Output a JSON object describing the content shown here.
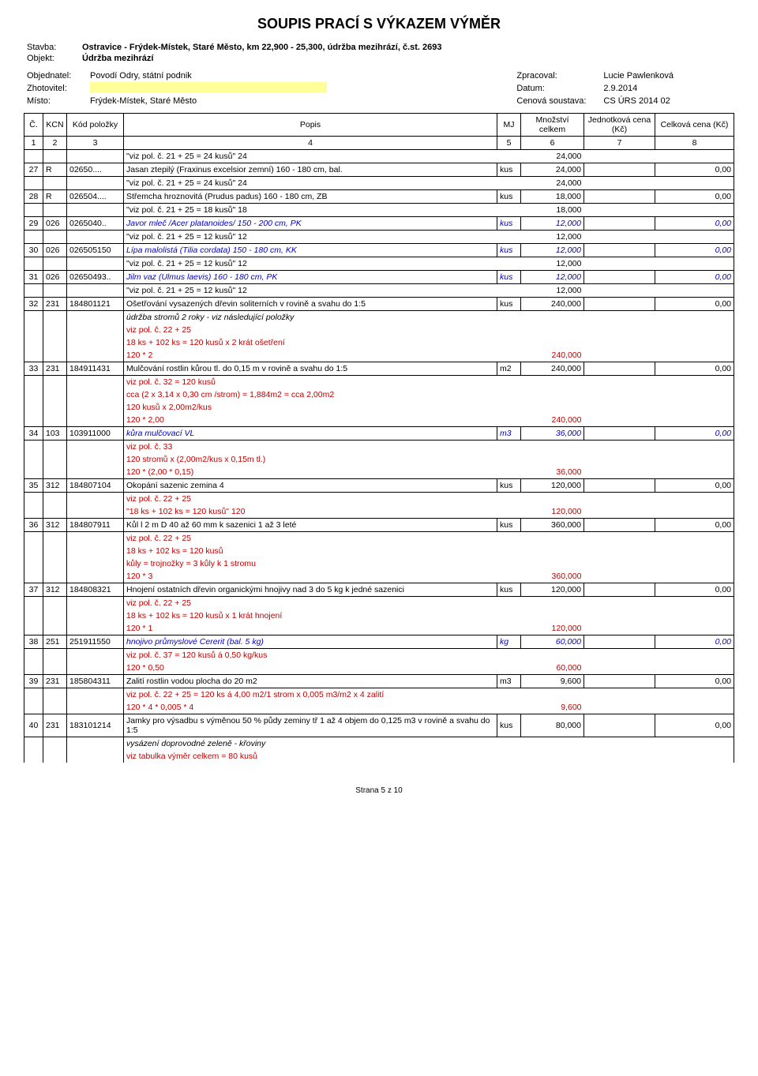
{
  "title": "SOUPIS PRACÍ S VÝKAZEM VÝMĚR",
  "header": {
    "stavba_label": "Stavba:",
    "stavba": "Ostravice - Frýdek-Místek, Staré Město, km 22,900 - 25,300, údržba mezihrází, č.st. 2693",
    "objekt_label": "Objekt:",
    "objekt": "Údržba mezihrází"
  },
  "meta": {
    "objednatel_label": "Objednatel:",
    "objednatel": "Povodí Odry, státní podnik",
    "zhotovitel_label": "Zhotovitel:",
    "zhotovitel": "",
    "misto_label": "Místo:",
    "misto": "Frýdek-Místek, Staré Město",
    "zpracoval_label": "Zpracoval:",
    "zpracoval": "Lucie Pawlenková",
    "datum_label": "Datum:",
    "datum": "2.9.2014",
    "cenova_label": "Cenová soustava:",
    "cenova": "CS ÚRS 2014 02"
  },
  "columns": {
    "c": "Č.",
    "kcn": "KCN",
    "kod": "Kód položky",
    "popis": "Popis",
    "mj": "MJ",
    "mnozstvi": "Množství celkem",
    "jednotkova": "Jednotková cena (Kč)",
    "celkova": "Celková cena (Kč)"
  },
  "colnums": {
    "c": "1",
    "kcn": "2",
    "kod": "3",
    "popis": "4",
    "mj": "5",
    "mnozstvi": "6",
    "jednotkova": "7",
    "celkova": "8"
  },
  "rows": [
    {
      "type": "sub",
      "popis": "\"viz pol. č. 21 + 25 = 24 kusů\"   24",
      "mn": "24,000"
    },
    {
      "type": "item",
      "c": "27",
      "kcn": "R",
      "kod": "02650....",
      "popis": "Jasan ztepilý (Fraxinus excelsior zemní) 160 - 180 cm, bal.",
      "mj": "kus",
      "mn": "24,000",
      "jc": "",
      "cc": "0,00"
    },
    {
      "type": "sub",
      "popis": "\"viz pol. č. 21 + 25 = 24 kusů\"   24",
      "mn": "24,000"
    },
    {
      "type": "item",
      "c": "28",
      "kcn": "R",
      "kod": "026504....",
      "popis": "Střemcha hroznovitá (Prudus padus) 160 - 180 cm, ZB",
      "mj": "kus",
      "mn": "18,000",
      "jc": "",
      "cc": "0,00"
    },
    {
      "type": "sub",
      "popis": "\"viz pol. č. 21 + 25 = 18 kusů\"   18",
      "mn": "18,000"
    },
    {
      "type": "item",
      "c": "29",
      "kcn": "026",
      "kod": "0265040..",
      "popis": "Javor mleč /Acer platanoides/ 150 - 200 cm, PK",
      "mj": "kus",
      "mn": "12,000",
      "jc": "",
      "cc": "0,00",
      "blue": true
    },
    {
      "type": "sub",
      "popis": "\"viz pol. č. 21 + 25 = 12 kusů\"   12",
      "mn": "12,000"
    },
    {
      "type": "item",
      "c": "30",
      "kcn": "026",
      "kod": "026505150",
      "popis": "Lípa malolistá (Tilia cordata) 150 - 180 cm, KK",
      "mj": "kus",
      "mn": "12,000",
      "jc": "",
      "cc": "0,00",
      "blue": true
    },
    {
      "type": "sub",
      "popis": "\"viz pol. č. 21 + 25 = 12 kusů\"   12",
      "mn": "12,000"
    },
    {
      "type": "item",
      "c": "31",
      "kcn": "026",
      "kod": "02650493..",
      "popis": "Jilm vaz (Ulmus laevis) 160 - 180 cm, PK",
      "mj": "kus",
      "mn": "12,000",
      "jc": "",
      "cc": "0,00",
      "blue": true
    },
    {
      "type": "sub",
      "popis": "\"viz pol. č. 21 + 25 = 12 kusů\"   12",
      "mn": "12,000"
    },
    {
      "type": "item",
      "c": "32",
      "kcn": "231",
      "kod": "184801121",
      "popis": "Ošetřování vysazených dřevin soliterních v rovině a svahu do 1:5",
      "mj": "kus",
      "mn": "240,000",
      "jc": "",
      "cc": "0,00"
    },
    {
      "type": "note",
      "popis": "údržba stromů 2 roky - viz následující položky",
      "italic": true
    },
    {
      "type": "note",
      "popis": "viz pol. č. 22 + 25",
      "red": true
    },
    {
      "type": "note",
      "popis": "18 ks + 102 ks = 120 kusů x 2 krát ošetření",
      "red": true
    },
    {
      "type": "sub",
      "popis": "120 * 2",
      "mn": "240,000",
      "red": true
    },
    {
      "type": "item",
      "c": "33",
      "kcn": "231",
      "kod": "184911431",
      "popis": "Mulčování rostlin kůrou tl. do 0,15 m v rovině a svahu do 1:5",
      "mj": "m2",
      "mn": "240,000",
      "jc": "",
      "cc": "0,00"
    },
    {
      "type": "note",
      "popis": "viz pol. č. 32 = 120 kusů",
      "red": true
    },
    {
      "type": "note",
      "popis": "cca (2 x 3,14 x 0,30 cm /strom) = 1,884m2 = cca 2,00m2",
      "red": true
    },
    {
      "type": "note",
      "popis": "120 kusů x 2,00m2/kus",
      "red": true
    },
    {
      "type": "sub",
      "popis": "120 * 2,00",
      "mn": "240,000",
      "red": true
    },
    {
      "type": "item",
      "c": "34",
      "kcn": "103",
      "kod": "103911000",
      "popis": "kůra mulčovací VL",
      "mj": "m3",
      "mn": "36,000",
      "jc": "",
      "cc": "0,00",
      "blue": true
    },
    {
      "type": "note",
      "popis": "viz pol. č. 33",
      "red": true
    },
    {
      "type": "note",
      "popis": "120 stromů x (2,00m2/kus x 0,15m tl.)",
      "red": true
    },
    {
      "type": "sub",
      "popis": "120 * (2,00 * 0,15)",
      "mn": "36,000",
      "red": true
    },
    {
      "type": "item",
      "c": "35",
      "kcn": "312",
      "kod": "184807104",
      "popis": "Okopání sazenic zemina 4",
      "mj": "kus",
      "mn": "120,000",
      "jc": "",
      "cc": "0,00"
    },
    {
      "type": "note",
      "popis": "viz pol. č. 22 + 25",
      "red": true
    },
    {
      "type": "sub",
      "popis": "\"18 ks + 102 ks = 120 kusů\"    120",
      "mn": "120,000",
      "red": true
    },
    {
      "type": "item",
      "c": "36",
      "kcn": "312",
      "kod": "184807911",
      "popis": "Kůl l 2 m D 40 až 60 mm k sazenici 1 až 3 leté",
      "mj": "kus",
      "mn": "360,000",
      "jc": "",
      "cc": "0,00"
    },
    {
      "type": "note",
      "popis": "viz pol. č. 22 + 25",
      "red": true
    },
    {
      "type": "note",
      "popis": "18 ks + 102 ks = 120 kusů",
      "red": true
    },
    {
      "type": "note",
      "popis": "kůly = trojnožky = 3 kůly k 1 stromu",
      "red": true
    },
    {
      "type": "sub",
      "popis": "120 * 3",
      "mn": "360,000",
      "red": true
    },
    {
      "type": "item",
      "c": "37",
      "kcn": "312",
      "kod": "184808321",
      "popis": "Hnojení ostatních dřevin organickými hnojivy nad 3 do 5 kg k jedné sazenici",
      "mj": "kus",
      "mn": "120,000",
      "jc": "",
      "cc": "0,00"
    },
    {
      "type": "note",
      "popis": "viz pol. č. 22 + 25",
      "red": true
    },
    {
      "type": "note",
      "popis": "18 ks + 102 ks = 120 kusů x 1 krát hnojení",
      "red": true
    },
    {
      "type": "sub",
      "popis": "120 * 1",
      "mn": "120,000",
      "red": true
    },
    {
      "type": "item",
      "c": "38",
      "kcn": "251",
      "kod": "251911550",
      "popis": "hnojivo průmyslové Cererit (bal. 5 kg)",
      "mj": "kg",
      "mn": "60,000",
      "jc": "",
      "cc": "0,00",
      "blue": true
    },
    {
      "type": "note",
      "popis": "viz pol. č. 37 = 120 kusů á 0,50 kg/kus",
      "red": true
    },
    {
      "type": "sub",
      "popis": "120 * 0,50",
      "mn": "60,000",
      "red": true
    },
    {
      "type": "item",
      "c": "39",
      "kcn": "231",
      "kod": "185804311",
      "popis": "Zalití rostlin vodou plocha do 20 m2",
      "mj": "m3",
      "mn": "9,600",
      "jc": "",
      "cc": "0,00"
    },
    {
      "type": "note",
      "popis": "viz pol. č. 22 + 25  = 120 ks á 4,00 m2/1 strom x 0,005 m3/m2 x 4 zalití",
      "red": true
    },
    {
      "type": "sub",
      "popis": "120 * 4 * 0,005 * 4",
      "mn": "9,600",
      "red": true
    },
    {
      "type": "item",
      "c": "40",
      "kcn": "231",
      "kod": "183101214",
      "popis": "Jamky pro výsadbu s výměnou 50 % půdy zeminy tř 1 až 4 objem do 0,125 m3 v rovině a svahu do 1:5",
      "mj": "kus",
      "mn": "80,000",
      "jc": "",
      "cc": "0,00"
    },
    {
      "type": "note",
      "popis": "vysázení doprovodné zeleně - křoviny",
      "italic": true
    },
    {
      "type": "note",
      "popis": "viz tabulka výměr celkem = 80 kusů",
      "red": true
    }
  ],
  "footer": "Strana 5  z 10"
}
